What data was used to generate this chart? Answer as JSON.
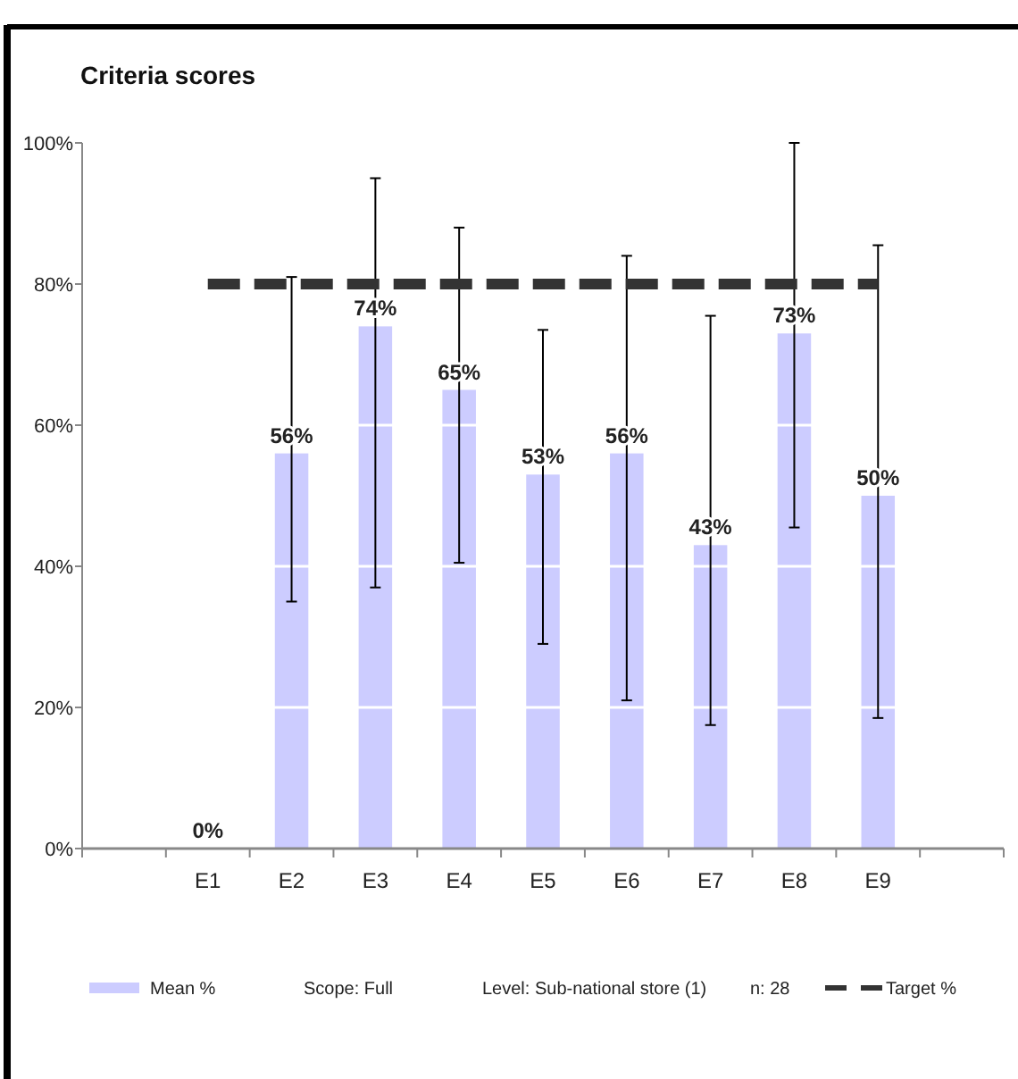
{
  "chart_data": {
    "type": "bar",
    "title": "Criteria scores",
    "categories": [
      null,
      "E1",
      "E2",
      "E3",
      "E4",
      "E5",
      "E6",
      "E7",
      "E8",
      "E9",
      null
    ],
    "series": [
      {
        "name": "Mean %",
        "color": "#ccccff",
        "values": [
          null,
          0,
          56,
          74,
          65,
          53,
          56,
          43,
          73,
          50,
          null
        ],
        "value_labels": [
          null,
          "0%",
          "56%",
          "74%",
          "65%",
          "53%",
          "56%",
          "43%",
          "73%",
          "50%",
          null
        ],
        "errors": [
          null,
          null,
          [
            35,
            81
          ],
          [
            37,
            95
          ],
          [
            40.5,
            88
          ],
          [
            29,
            73.5
          ],
          [
            21,
            84
          ],
          [
            17.5,
            75.5
          ],
          [
            45.5,
            100
          ],
          [
            18.5,
            85.5
          ],
          null
        ]
      },
      {
        "name": "Target %",
        "type": "line",
        "color": "#333333",
        "line_style": "dashed",
        "values": [
          null,
          80,
          80,
          80,
          80,
          80,
          80,
          80,
          80,
          80,
          null
        ]
      }
    ],
    "ylim": [
      0,
      100
    ],
    "yticks": [
      {
        "value": 0,
        "label": "0%"
      },
      {
        "value": 20,
        "label": "20%"
      },
      {
        "value": 40,
        "label": "40%"
      },
      {
        "value": 60,
        "label": "60%"
      },
      {
        "value": 80,
        "label": "80%"
      },
      {
        "value": 100,
        "label": "100%"
      }
    ],
    "grid": "y",
    "legend": "bottom",
    "annotations": [
      "Scope: Full",
      "Level: Sub-national store (1)",
      "n: 28"
    ]
  }
}
